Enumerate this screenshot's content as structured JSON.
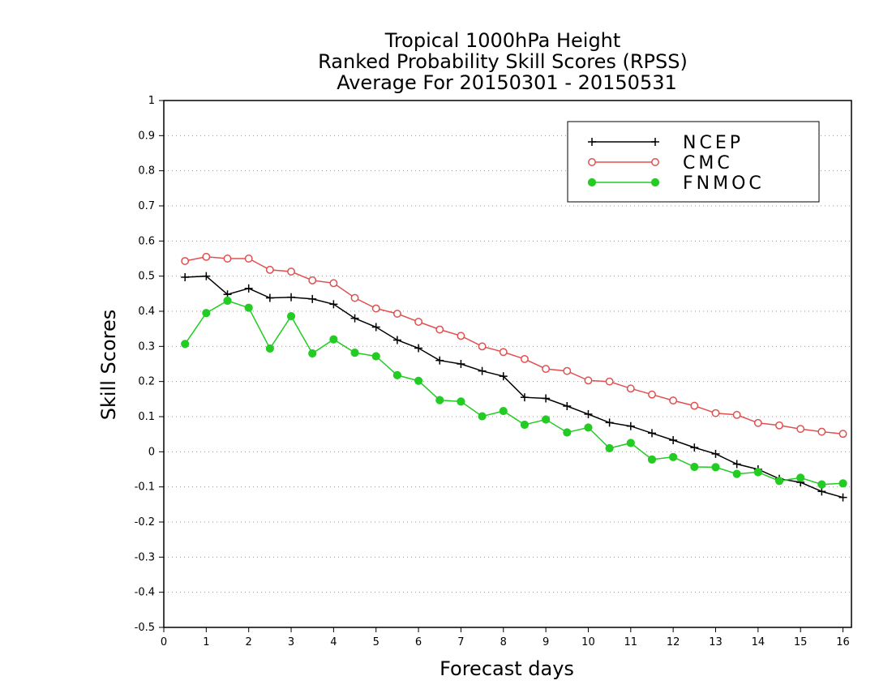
{
  "chart_data": {
    "type": "line",
    "title_lines": [
      "Tropical 1000hPa Height",
      "Ranked Probability Skill Scores (RPSS)",
      "Average For 20150301 - 20150531"
    ],
    "xlabel": "Forecast days",
    "ylabel": "Skill Scores",
    "xlim": [
      0,
      16.2
    ],
    "ylim": [
      -0.5,
      1
    ],
    "xticks": [
      0,
      1,
      2,
      3,
      4,
      5,
      6,
      7,
      8,
      9,
      10,
      11,
      12,
      13,
      14,
      15,
      16
    ],
    "yticks": [
      -0.5,
      -0.4,
      -0.3,
      -0.2,
      -0.1,
      0,
      0.1,
      0.2,
      0.3,
      0.4,
      0.5,
      0.6,
      0.7,
      0.8,
      0.9,
      1
    ],
    "ytick_labels": [
      "-0.5",
      "-0.4",
      "-0.3",
      "-0.2",
      "-0.1",
      "0",
      "0.1",
      "0.2",
      "0.3",
      "0.4",
      "0.5",
      "0.6",
      "0.7",
      "0.8",
      "0.9",
      "1"
    ],
    "grid": "horizontal dotted",
    "legend_position": "top-right",
    "x": [
      0.5,
      1,
      1.5,
      2,
      2.5,
      3,
      3.5,
      4,
      4.5,
      5,
      5.5,
      6,
      6.5,
      7,
      7.5,
      8,
      8.5,
      9,
      9.5,
      10,
      10.5,
      11,
      11.5,
      12,
      12.5,
      13,
      13.5,
      14,
      14.5,
      15,
      15.5,
      16
    ],
    "series": [
      {
        "name": "NCEP",
        "color": "#000000",
        "marker": "plus",
        "values": [
          0.497,
          0.5,
          0.448,
          0.465,
          0.438,
          0.44,
          0.435,
          0.42,
          0.38,
          0.355,
          0.318,
          0.295,
          0.26,
          0.25,
          0.23,
          0.215,
          0.155,
          0.152,
          0.13,
          0.107,
          0.083,
          0.073,
          0.053,
          0.033,
          0.012,
          -0.006,
          -0.035,
          -0.05,
          -0.077,
          -0.087,
          -0.113,
          -0.13
        ]
      },
      {
        "name": "CMC",
        "color": "#e05050",
        "marker": "open-circle",
        "values": [
          0.543,
          0.555,
          0.55,
          0.55,
          0.518,
          0.513,
          0.488,
          0.48,
          0.438,
          0.408,
          0.393,
          0.37,
          0.348,
          0.33,
          0.3,
          0.284,
          0.264,
          0.236,
          0.23,
          0.203,
          0.2,
          0.18,
          0.163,
          0.146,
          0.131,
          0.11,
          0.105,
          0.082,
          0.075,
          0.065,
          0.057,
          0.051
        ]
      },
      {
        "name": "FNMOC",
        "color": "#22cc22",
        "marker": "filled-circle",
        "values": [
          0.307,
          0.395,
          0.43,
          0.41,
          0.294,
          0.386,
          0.28,
          0.32,
          0.282,
          0.272,
          0.218,
          0.202,
          0.147,
          0.143,
          0.101,
          0.116,
          0.077,
          0.092,
          0.055,
          0.069,
          0.01,
          0.025,
          -0.022,
          -0.015,
          -0.043,
          -0.044,
          -0.063,
          -0.058,
          -0.083,
          -0.074,
          -0.093,
          -0.09
        ]
      }
    ]
  }
}
